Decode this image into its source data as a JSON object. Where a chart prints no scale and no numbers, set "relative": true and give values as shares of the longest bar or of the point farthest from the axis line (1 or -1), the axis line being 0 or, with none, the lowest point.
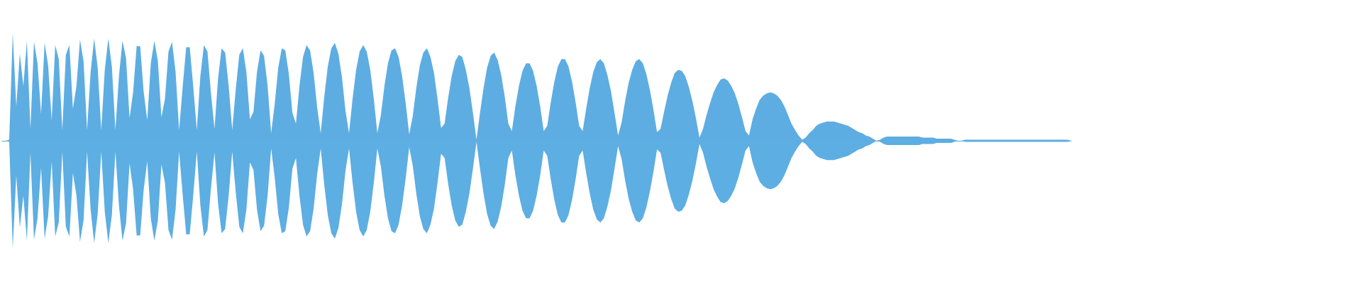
{
  "chart_data": {
    "type": "area",
    "relative": true,
    "categories": [
      null,
      null,
      null,
      null,
      null,
      null,
      null,
      null,
      null,
      null,
      null,
      null,
      null,
      null,
      null,
      null,
      null,
      null,
      null,
      null,
      null,
      null,
      null,
      null,
      null,
      null,
      null,
      null,
      null,
      null,
      null,
      null,
      null,
      null,
      null,
      null,
      null,
      null,
      null,
      null,
      null,
      null,
      null,
      null,
      null,
      null,
      null,
      null,
      null,
      null,
      null,
      null,
      null,
      null,
      null,
      null,
      null,
      null,
      null,
      null,
      null,
      null,
      null,
      null,
      null,
      null,
      null,
      null,
      null,
      null,
      null,
      null,
      null,
      null,
      null,
      null,
      null,
      null,
      null,
      null,
      null,
      null,
      null,
      null,
      null,
      null,
      null,
      null,
      null,
      null,
      null,
      null,
      null,
      null,
      null,
      null,
      null,
      null,
      null,
      null,
      null,
      null,
      null,
      null,
      null,
      null,
      null,
      null,
      null,
      null,
      null,
      null,
      null,
      null,
      null,
      null,
      null,
      null,
      null,
      null,
      null,
      null,
      null,
      null,
      null,
      null,
      null,
      null,
      null,
      null,
      null,
      null,
      null,
      null,
      null,
      null,
      null,
      null,
      null,
      null,
      null,
      null,
      null,
      null,
      null,
      null,
      null,
      null,
      null,
      null,
      null,
      null,
      null,
      null,
      null,
      null,
      null,
      null,
      null,
      null,
      null,
      null,
      null,
      null,
      null,
      null,
      null,
      null,
      null,
      null,
      null,
      null,
      null,
      null,
      null,
      null,
      null,
      null,
      null,
      null,
      null,
      null,
      null,
      null,
      null,
      null,
      null,
      null,
      null,
      null,
      null,
      null,
      null,
      null,
      null,
      null,
      null,
      null,
      null,
      null,
      null,
      null,
      null,
      null,
      null,
      null,
      null,
      null,
      null,
      null,
      null,
      null,
      null,
      null,
      null,
      null,
      null,
      null,
      null,
      null,
      null,
      null,
      null,
      null,
      null,
      null,
      null,
      null,
      null,
      null,
      null,
      null,
      null,
      null,
      null,
      null,
      null,
      null,
      null,
      null,
      null,
      null,
      null,
      null,
      null,
      null,
      null,
      null,
      null,
      null,
      null,
      null,
      null,
      null,
      null,
      null,
      null,
      null,
      null,
      null,
      null,
      null,
      null,
      null,
      null,
      null,
      null,
      null,
      null,
      null,
      null,
      null,
      null,
      null,
      null,
      null,
      null,
      null,
      null,
      null,
      null,
      null,
      null,
      null,
      null,
      null,
      null,
      null,
      null,
      null,
      null,
      null,
      null,
      null,
      null,
      null,
      null,
      null,
      null,
      null,
      null,
      null,
      null
    ],
    "series": [
      {
        "color": "#5dade2",
        "values": [
          0,
          0,
          0.01,
          1.0,
          0.32,
          0.81,
          0.51,
          0.93,
          0.11,
          0.92,
          0.72,
          0.25,
          0.91,
          0.7,
          0.19,
          0.89,
          0.76,
          0.1,
          0.8,
          0.89,
          0.3,
          0.51,
          0.94,
          0.74,
          0.1,
          0.64,
          0.95,
          0.68,
          0.1,
          0.66,
          0.95,
          0.69,
          0.1,
          0.6,
          0.93,
          0.77,
          0.21,
          0.45,
          0.88,
          0.88,
          0.45,
          0.19,
          0.72,
          0.93,
          0.74,
          0.22,
          0.39,
          0.83,
          0.92,
          0.64,
          0.1,
          0.5,
          0.87,
          0.87,
          0.5,
          0.1,
          0.6,
          0.89,
          0.83,
          0.44,
          0.11,
          0.58,
          0.86,
          0.82,
          0.51,
          0.1,
          0.48,
          0.8,
          0.86,
          0.64,
          0.2,
          0.27,
          0.64,
          0.84,
          0.79,
          0.51,
          0.07,
          0.34,
          0.68,
          0.86,
          0.84,
          0.62,
          0.26,
          0.16,
          0.51,
          0.78,
          0.89,
          0.84,
          0.63,
          0.31,
          0.07,
          0.41,
          0.69,
          0.86,
          0.91,
          0.81,
          0.59,
          0.28,
          0.07,
          0.39,
          0.66,
          0.83,
          0.89,
          0.83,
          0.66,
          0.39,
          0.07,
          0.24,
          0.51,
          0.72,
          0.84,
          0.86,
          0.78,
          0.6,
          0.35,
          0.06,
          0.23,
          0.49,
          0.7,
          0.82,
          0.86,
          0.78,
          0.63,
          0.39,
          0.12,
          0.16,
          0.4,
          0.6,
          0.74,
          0.8,
          0.78,
          0.66,
          0.49,
          0.26,
          0.01,
          0.26,
          0.49,
          0.68,
          0.79,
          0.82,
          0.75,
          0.61,
          0.41,
          0.16,
          0.09,
          0.32,
          0.51,
          0.65,
          0.72,
          0.72,
          0.65,
          0.51,
          0.32,
          0.09,
          0.14,
          0.36,
          0.55,
          0.69,
          0.76,
          0.76,
          0.69,
          0.55,
          0.36,
          0.14,
          0.09,
          0.3,
          0.49,
          0.64,
          0.73,
          0.76,
          0.72,
          0.61,
          0.46,
          0.26,
          0.05,
          0.17,
          0.37,
          0.54,
          0.66,
          0.74,
          0.76,
          0.72,
          0.62,
          0.47,
          0.29,
          0.08,
          0.11,
          0.27,
          0.42,
          0.54,
          0.63,
          0.66,
          0.65,
          0.6,
          0.5,
          0.37,
          0.21,
          0.03,
          0.11,
          0.24,
          0.35,
          0.45,
          0.52,
          0.57,
          0.58,
          0.56,
          0.51,
          0.44,
          0.34,
          0.22,
          0.09,
          0.05,
          0.2,
          0.3,
          0.38,
          0.42,
          0.44,
          0.45,
          0.44,
          0.42,
          0.38,
          0.32,
          0.24,
          0.16,
          0.1,
          0.05,
          0.01,
          0.03,
          0.07,
          0.1,
          0.14,
          0.16,
          0.17,
          0.18,
          0.18,
          0.18,
          0.17,
          0.16,
          0.15,
          0.14,
          0.12,
          0.1,
          0.08,
          0.07,
          0.05,
          0.04,
          0.02,
          0,
          0.01,
          0.03,
          0.04,
          0.04,
          0.04,
          0.04,
          0.04,
          0.04,
          0.04,
          0.04,
          0.04,
          0.04,
          0.03,
          0.03,
          0.03,
          0.03,
          0.02,
          0.02,
          0.02,
          0.02,
          0.02,
          0.01,
          0,
          0,
          0.01,
          0.01,
          0.01,
          0.01,
          0.01,
          0.01,
          0.01,
          0.01,
          0.01,
          0.01,
          0.01,
          0.01,
          0.01,
          0.01,
          0.01,
          0.01,
          0.01,
          0.01,
          0.01,
          0.01,
          0.01,
          0.01,
          0.01,
          0.01,
          0.01,
          0.01,
          0.01,
          0.01,
          0.01,
          0.01,
          0
        ]
      },
      {
        "color": "#5daee2",
        "values": [
          0,
          0,
          -0.01,
          -1.0,
          -0.32,
          -0.81,
          -0.51,
          -0.93,
          -0.11,
          -0.92,
          -0.72,
          -0.25,
          -0.91,
          -0.7,
          -0.19,
          -0.89,
          -0.76,
          -0.1,
          -0.8,
          -0.89,
          -0.3,
          -0.51,
          -0.94,
          -0.74,
          -0.1,
          -0.64,
          -0.95,
          -0.68,
          -0.1,
          -0.66,
          -0.95,
          -0.69,
          -0.1,
          -0.6,
          -0.93,
          -0.77,
          -0.21,
          -0.45,
          -0.88,
          -0.88,
          -0.45,
          -0.19,
          -0.72,
          -0.93,
          -0.74,
          -0.22,
          -0.39,
          -0.83,
          -0.92,
          -0.64,
          -0.1,
          -0.5,
          -0.87,
          -0.87,
          -0.5,
          -0.1,
          -0.6,
          -0.89,
          -0.83,
          -0.44,
          -0.11,
          -0.58,
          -0.86,
          -0.82,
          -0.51,
          -0.1,
          -0.48,
          -0.8,
          -0.86,
          -0.64,
          -0.2,
          -0.27,
          -0.64,
          -0.84,
          -0.79,
          -0.51,
          -0.07,
          -0.34,
          -0.68,
          -0.86,
          -0.84,
          -0.62,
          -0.26,
          -0.16,
          -0.51,
          -0.78,
          -0.89,
          -0.84,
          -0.63,
          -0.31,
          -0.07,
          -0.41,
          -0.69,
          -0.86,
          -0.91,
          -0.81,
          -0.59,
          -0.28,
          -0.07,
          -0.39,
          -0.66,
          -0.83,
          -0.89,
          -0.83,
          -0.66,
          -0.39,
          -0.07,
          -0.24,
          -0.51,
          -0.72,
          -0.84,
          -0.86,
          -0.78,
          -0.6,
          -0.35,
          -0.06,
          -0.23,
          -0.49,
          -0.7,
          -0.82,
          -0.86,
          -0.78,
          -0.63,
          -0.39,
          -0.12,
          -0.16,
          -0.4,
          -0.6,
          -0.74,
          -0.8,
          -0.78,
          -0.66,
          -0.49,
          -0.26,
          -0.01,
          -0.26,
          -0.49,
          -0.68,
          -0.79,
          -0.82,
          -0.75,
          -0.61,
          -0.41,
          -0.16,
          -0.09,
          -0.32,
          -0.51,
          -0.65,
          -0.72,
          -0.72,
          -0.65,
          -0.51,
          -0.32,
          -0.09,
          -0.14,
          -0.36,
          -0.55,
          -0.69,
          -0.76,
          -0.76,
          -0.69,
          -0.55,
          -0.36,
          -0.14,
          -0.09,
          -0.3,
          -0.49,
          -0.64,
          -0.73,
          -0.76,
          -0.72,
          -0.61,
          -0.46,
          -0.26,
          -0.05,
          -0.17,
          -0.37,
          -0.54,
          -0.66,
          -0.74,
          -0.76,
          -0.72,
          -0.62,
          -0.47,
          -0.29,
          -0.08,
          -0.11,
          -0.27,
          -0.42,
          -0.54,
          -0.63,
          -0.66,
          -0.65,
          -0.6,
          -0.5,
          -0.37,
          -0.21,
          -0.03,
          -0.11,
          -0.24,
          -0.35,
          -0.45,
          -0.52,
          -0.57,
          -0.58,
          -0.56,
          -0.51,
          -0.44,
          -0.34,
          -0.22,
          -0.09,
          -0.05,
          -0.2,
          -0.3,
          -0.38,
          -0.42,
          -0.44,
          -0.45,
          -0.44,
          -0.42,
          -0.38,
          -0.32,
          -0.24,
          -0.16,
          -0.1,
          -0.05,
          -0.01,
          -0.03,
          -0.07,
          -0.1,
          -0.14,
          -0.16,
          -0.17,
          -0.18,
          -0.18,
          -0.18,
          -0.17,
          -0.16,
          -0.15,
          -0.14,
          -0.12,
          -0.1,
          -0.08,
          -0.07,
          -0.05,
          -0.04,
          -0.02,
          0,
          -0.01,
          -0.03,
          -0.04,
          -0.04,
          -0.04,
          -0.04,
          -0.04,
          -0.04,
          -0.04,
          -0.04,
          -0.04,
          -0.04,
          -0.03,
          -0.03,
          -0.03,
          -0.03,
          -0.02,
          -0.02,
          -0.02,
          -0.02,
          -0.02,
          -0.01,
          0,
          0,
          -0.01,
          -0.01,
          -0.01,
          -0.01,
          -0.01,
          -0.01,
          -0.01,
          -0.01,
          -0.01,
          -0.01,
          -0.01,
          -0.01,
          -0.01,
          -0.01,
          -0.01,
          -0.01,
          -0.01,
          -0.01,
          -0.01,
          -0.01,
          -0.01,
          -0.01,
          -0.01,
          -0.01,
          -0.01,
          -0.01,
          -0.01,
          -0.01,
          -0.01,
          -0.01,
          0
        ]
      }
    ]
  }
}
